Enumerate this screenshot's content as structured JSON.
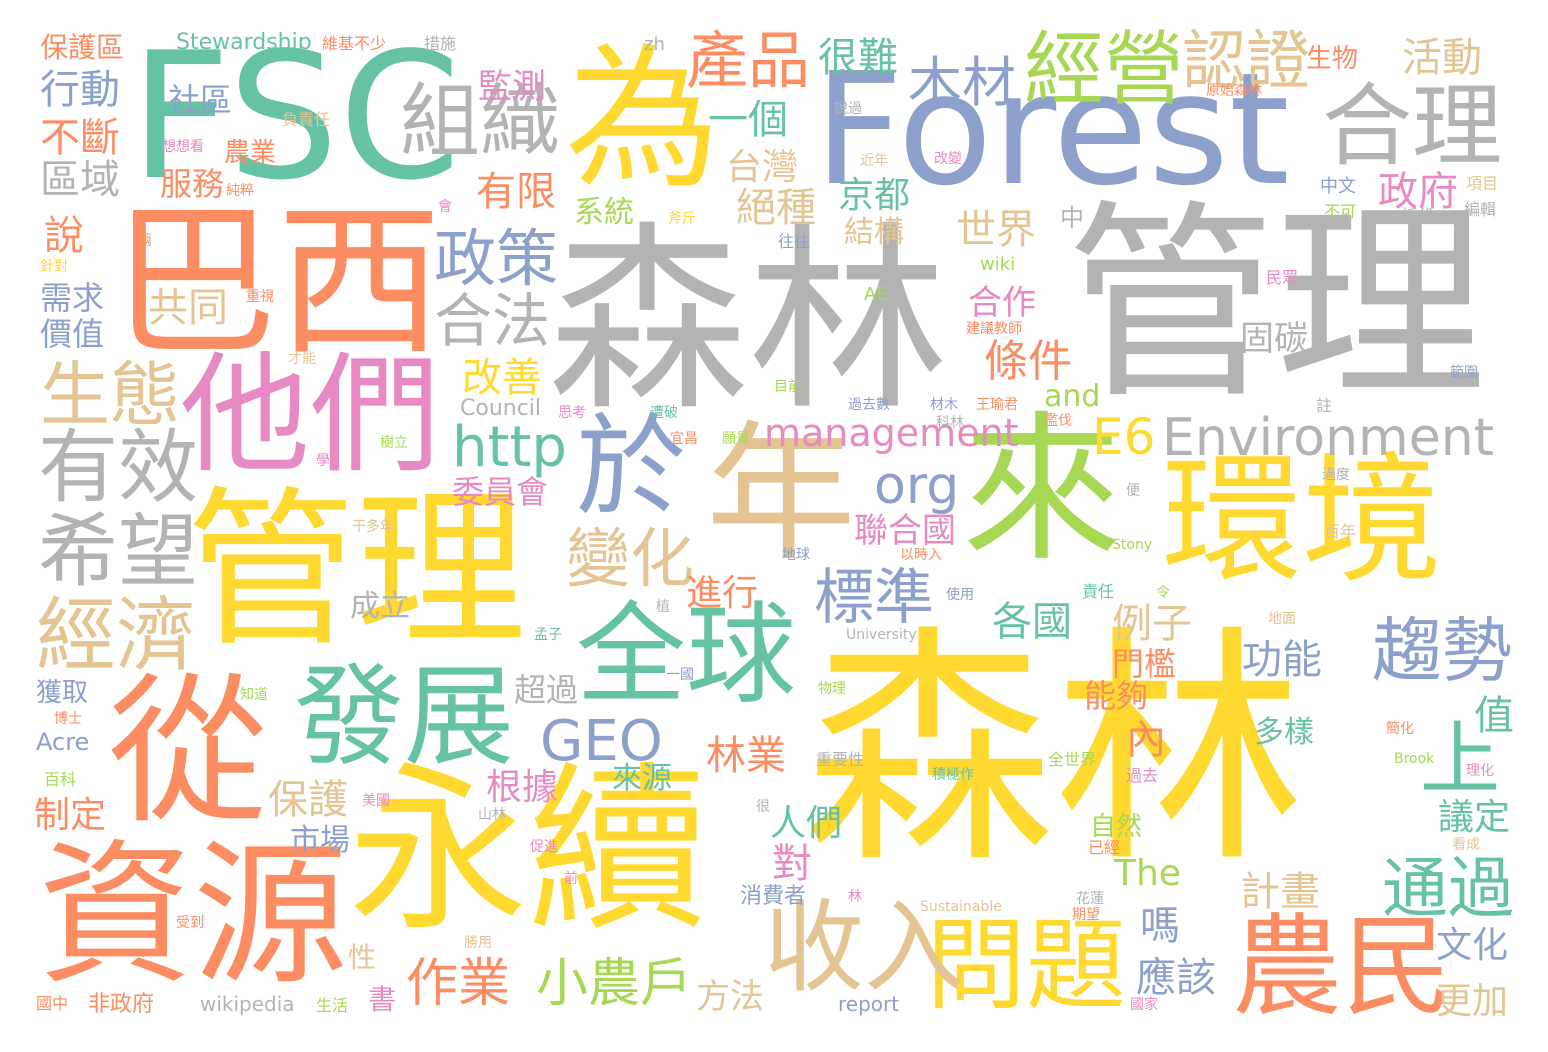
{
  "palette": {
    "green": "#66c2a5",
    "orange": "#fc8d62",
    "blue": "#8da0cb",
    "pink": "#e78ac3",
    "lime": "#a6d854",
    "yellow": "#ffd92f",
    "tan": "#e5c494",
    "gray": "#b3b3b3"
  },
  "words": [
    {
      "text": "森林",
      "color": "yellow"
    },
    {
      "text": "森林",
      "color": "gray"
    },
    {
      "text": "管理",
      "color": "gray"
    },
    {
      "text": "管理",
      "color": "yellow"
    },
    {
      "text": "Forest",
      "color": "blue"
    },
    {
      "text": "FSC",
      "color": "green"
    },
    {
      "text": "巴西",
      "color": "orange"
    },
    {
      "text": "永續",
      "color": "yellow"
    },
    {
      "text": "資源",
      "color": "orange"
    },
    {
      "text": "從",
      "color": "orange"
    },
    {
      "text": "他們",
      "color": "pink"
    },
    {
      "text": "為",
      "color": "yellow"
    },
    {
      "text": "年",
      "color": "tan"
    },
    {
      "text": "來",
      "color": "lime"
    },
    {
      "text": "環境",
      "color": "yellow"
    },
    {
      "text": "全球",
      "color": "green"
    },
    {
      "text": "發展",
      "color": "green"
    },
    {
      "text": "於",
      "color": "blue"
    },
    {
      "text": "農民",
      "color": "orange"
    },
    {
      "text": "問題",
      "color": "yellow"
    },
    {
      "text": "收入",
      "color": "tan"
    },
    {
      "text": "合理",
      "color": "gray"
    },
    {
      "text": "組織",
      "color": "gray"
    },
    {
      "text": "經營",
      "color": "lime"
    },
    {
      "text": "認證",
      "color": "tan"
    },
    {
      "text": "Environment",
      "color": "gray"
    },
    {
      "text": "經濟",
      "color": "tan"
    },
    {
      "text": "希望",
      "color": "gray"
    },
    {
      "text": "有效",
      "color": "gray"
    },
    {
      "text": "生態",
      "color": "tan"
    },
    {
      "text": "趨勢",
      "color": "blue"
    },
    {
      "text": "通過",
      "color": "green"
    },
    {
      "text": "標準",
      "color": "blue"
    },
    {
      "text": "政策",
      "color": "blue"
    },
    {
      "text": "合法",
      "color": "gray"
    },
    {
      "text": "變化",
      "color": "tan"
    },
    {
      "text": "產品",
      "color": "orange"
    },
    {
      "text": "木材",
      "color": "blue"
    },
    {
      "text": "小農戶",
      "color": "lime"
    },
    {
      "text": "作業",
      "color": "orange"
    },
    {
      "text": "http",
      "color": "green"
    },
    {
      "text": "GEO",
      "color": "blue"
    },
    {
      "text": "management",
      "color": "pink"
    },
    {
      "text": "E6",
      "color": "yellow"
    },
    {
      "text": "org",
      "color": "blue"
    },
    {
      "text": "上",
      "color": "green"
    },
    {
      "text": "Stewardship",
      "color": "green"
    },
    {
      "text": "保護區",
      "color": "orange"
    },
    {
      "text": "行動",
      "color": "blue"
    },
    {
      "text": "不斷",
      "color": "orange"
    },
    {
      "text": "區域",
      "color": "gray"
    },
    {
      "text": "社區",
      "color": "blue"
    },
    {
      "text": "農業",
      "color": "orange"
    },
    {
      "text": "服務",
      "color": "orange"
    },
    {
      "text": "監測",
      "color": "pink"
    },
    {
      "text": "很難",
      "color": "green"
    },
    {
      "text": "一個",
      "color": "green"
    },
    {
      "text": "台灣",
      "color": "tan"
    },
    {
      "text": "絕種",
      "color": "tan"
    },
    {
      "text": "有限",
      "color": "orange"
    },
    {
      "text": "京都",
      "color": "green"
    },
    {
      "text": "結構",
      "color": "tan"
    },
    {
      "text": "系統",
      "color": "lime"
    },
    {
      "text": "世界",
      "color": "tan"
    },
    {
      "text": "政府",
      "color": "pink"
    },
    {
      "text": "活動",
      "color": "tan"
    },
    {
      "text": "生物",
      "color": "orange"
    },
    {
      "text": "說",
      "color": "orange"
    },
    {
      "text": "需求",
      "color": "blue"
    },
    {
      "text": "價值",
      "color": "blue"
    },
    {
      "text": "共同",
      "color": "tan"
    },
    {
      "text": "改善",
      "color": "yellow"
    },
    {
      "text": "合作",
      "color": "pink"
    },
    {
      "text": "條件",
      "color": "orange"
    },
    {
      "text": "固碳",
      "color": "gray"
    },
    {
      "text": "and",
      "color": "lime"
    },
    {
      "text": "Council",
      "color": "gray"
    },
    {
      "text": "聯合國",
      "color": "pink"
    },
    {
      "text": "進行",
      "color": "orange"
    },
    {
      "text": "各國",
      "color": "green"
    },
    {
      "text": "例子",
      "color": "tan"
    },
    {
      "text": "門檻",
      "color": "orange"
    },
    {
      "text": "能夠",
      "color": "orange"
    },
    {
      "text": "功能",
      "color": "blue"
    },
    {
      "text": "超過",
      "color": "gray"
    },
    {
      "text": "林業",
      "color": "orange"
    },
    {
      "text": "保護",
      "color": "tan"
    },
    {
      "text": "市場",
      "color": "blue"
    },
    {
      "text": "根據",
      "color": "pink"
    },
    {
      "text": "來源",
      "color": "green"
    },
    {
      "text": "人們",
      "color": "green"
    },
    {
      "text": "對",
      "color": "pink"
    },
    {
      "text": "內",
      "color": "orange"
    },
    {
      "text": "多樣",
      "color": "green"
    },
    {
      "text": "值",
      "color": "green"
    },
    {
      "text": "議定",
      "color": "green"
    },
    {
      "text": "自然",
      "color": "lime"
    },
    {
      "text": "The",
      "color": "lime"
    },
    {
      "text": "嗎",
      "color": "blue"
    },
    {
      "text": "計畫",
      "color": "tan"
    },
    {
      "text": "應該",
      "color": "blue"
    },
    {
      "text": "文化",
      "color": "blue"
    },
    {
      "text": "更加",
      "color": "tan"
    },
    {
      "text": "消費者",
      "color": "blue"
    },
    {
      "text": "方法",
      "color": "tan"
    },
    {
      "text": "書",
      "color": "pink"
    },
    {
      "text": "性",
      "color": "tan"
    },
    {
      "text": "wikipedia",
      "color": "gray"
    },
    {
      "text": "非政府",
      "color": "orange"
    },
    {
      "text": "制定",
      "color": "orange"
    },
    {
      "text": "Acre",
      "color": "blue"
    },
    {
      "text": "獲取",
      "color": "blue"
    },
    {
      "text": "成立",
      "color": "gray"
    },
    {
      "text": "report",
      "color": "blue"
    },
    {
      "text": "維基不少",
      "color": "orange"
    },
    {
      "text": "措施",
      "color": "gray"
    },
    {
      "text": "zh",
      "color": "gray"
    },
    {
      "text": "負責任",
      "color": "tan"
    },
    {
      "text": "原始森林",
      "color": "orange"
    },
    {
      "text": "中文",
      "color": "blue"
    },
    {
      "text": "不可",
      "color": "lime"
    },
    {
      "text": "項目",
      "color": "tan"
    },
    {
      "text": "編輯",
      "color": "gray"
    },
    {
      "text": "中",
      "color": "gray"
    },
    {
      "text": "wiki",
      "color": "lime"
    },
    {
      "text": "AE",
      "color": "lime"
    },
    {
      "text": "民眾",
      "color": "pink"
    },
    {
      "text": "採伐",
      "color": "gray"
    },
    {
      "text": "範圍",
      "color": "blue"
    },
    {
      "text": "註",
      "color": "gray"
    },
    {
      "text": "百年",
      "color": "tan"
    },
    {
      "text": "Stony",
      "color": "lime"
    },
    {
      "text": "University",
      "color": "gray"
    },
    {
      "text": "Brook",
      "color": "lime"
    },
    {
      "text": "理化",
      "color": "pink"
    },
    {
      "text": "Sustainable",
      "color": "tan"
    },
    {
      "text": "知道",
      "color": "lime"
    },
    {
      "text": "博士",
      "color": "orange"
    },
    {
      "text": "百科",
      "color": "lime"
    },
    {
      "text": "國中",
      "color": "orange"
    },
    {
      "text": "生活",
      "color": "lime"
    },
    {
      "text": "國家",
      "color": "pink"
    },
    {
      "text": "花蓮",
      "color": "gray"
    },
    {
      "text": "物理",
      "color": "lime"
    },
    {
      "text": "重要性",
      "color": "gray"
    },
    {
      "text": "全世界",
      "color": "lime"
    },
    {
      "text": "過去",
      "color": "pink"
    },
    {
      "text": "地球",
      "color": "blue"
    },
    {
      "text": "以時入",
      "color": "orange"
    },
    {
      "text": "使用",
      "color": "blue"
    },
    {
      "text": "責任",
      "color": "green"
    },
    {
      "text": "地面",
      "color": "tan"
    },
    {
      "text": "過去數",
      "color": "blue"
    },
    {
      "text": "材木",
      "color": "blue"
    },
    {
      "text": "王瑜君",
      "color": "orange"
    },
    {
      "text": "目前",
      "color": "lime"
    },
    {
      "text": "重視",
      "color": "orange"
    },
    {
      "text": "建議教師",
      "color": "orange"
    },
    {
      "text": "說過",
      "color": "gray"
    },
    {
      "text": "改變",
      "color": "pink"
    },
    {
      "text": "近年",
      "color": "tan"
    },
    {
      "text": "想想看",
      "color": "pink"
    },
    {
      "text": "純粹",
      "color": "orange"
    },
    {
      "text": "往往",
      "color": "blue"
    },
    {
      "text": "斧斤",
      "color": "yellow"
    },
    {
      "text": "針對",
      "color": "yellow"
    },
    {
      "text": "兩",
      "color": "orange"
    },
    {
      "text": "會",
      "color": "pink"
    },
    {
      "text": "才能",
      "color": "tan"
    },
    {
      "text": "思考",
      "color": "pink"
    },
    {
      "text": "遭破",
      "color": "green"
    },
    {
      "text": "宜昌",
      "color": "orange"
    },
    {
      "text": "願景",
      "color": "lime"
    },
    {
      "text": "孟子",
      "color": "green"
    },
    {
      "text": "山林",
      "color": "gray"
    },
    {
      "text": "美國",
      "color": "pink"
    },
    {
      "text": "促進",
      "color": "pink"
    },
    {
      "text": "前",
      "color": "pink"
    },
    {
      "text": "受到",
      "color": "orange"
    },
    {
      "text": "勝用",
      "color": "tan"
    },
    {
      "text": "已經",
      "color": "orange"
    },
    {
      "text": "積極作",
      "color": "green"
    },
    {
      "text": "很",
      "color": "gray"
    },
    {
      "text": "期望",
      "color": "orange"
    },
    {
      "text": "林",
      "color": "pink"
    },
    {
      "text": "看成",
      "color": "tan"
    },
    {
      "text": "委員會",
      "color": "pink"
    },
    {
      "text": "樹立",
      "color": "lime"
    },
    {
      "text": "學",
      "color": "pink"
    },
    {
      "text": "干多年",
      "color": "tan"
    },
    {
      "text": "一國",
      "color": "blue"
    },
    {
      "text": "便",
      "color": "gray"
    },
    {
      "text": "過度",
      "color": "gray"
    },
    {
      "text": "令",
      "color": "lime"
    },
    {
      "text": "簡化",
      "color": "orange"
    },
    {
      "text": "科林",
      "color": "gray"
    },
    {
      "text": "濫伐",
      "color": "orange"
    },
    {
      "text": "植",
      "color": "gray"
    }
  ]
}
